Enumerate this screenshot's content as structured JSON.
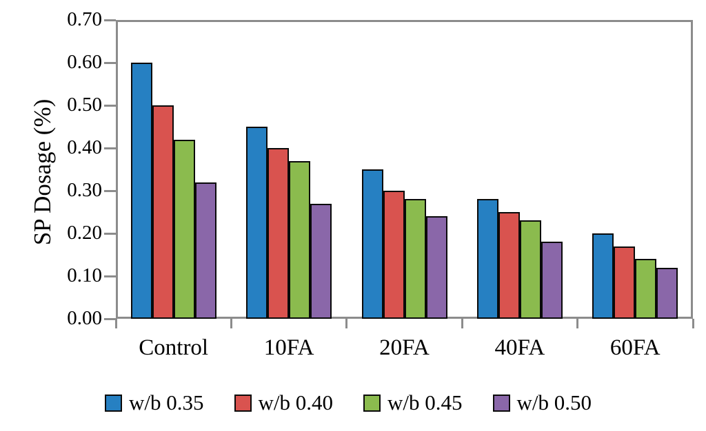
{
  "chart_data": {
    "type": "bar",
    "title": "",
    "xlabel": "",
    "ylabel": "SP Dosage (%)",
    "categories": [
      "Control",
      "10FA",
      "20FA",
      "40FA",
      "60FA"
    ],
    "series": [
      {
        "name": "w/b 0.35",
        "color": "#2680C2",
        "values": [
          0.6,
          0.45,
          0.35,
          0.28,
          0.2
        ]
      },
      {
        "name": "w/b 0.40",
        "color": "#D9534F",
        "values": [
          0.5,
          0.4,
          0.3,
          0.25,
          0.17
        ]
      },
      {
        "name": "w/b 0.45",
        "color": "#8BBB4E",
        "values": [
          0.42,
          0.37,
          0.28,
          0.23,
          0.14
        ]
      },
      {
        "name": "w/b 0.50",
        "color": "#8A67A9",
        "values": [
          0.32,
          0.27,
          0.24,
          0.18,
          0.12
        ]
      }
    ],
    "ylim": [
      0,
      0.7
    ],
    "ytick_step": 0.1,
    "ytick_labels": [
      "0.70",
      "0.60",
      "0.50",
      "0.40",
      "0.30",
      "0.20",
      "0.10",
      "0.00"
    ],
    "grid": false,
    "legend_position": "bottom",
    "axis_color": "#8C8C8C",
    "bar_border_color": "#0a0a0a"
  }
}
